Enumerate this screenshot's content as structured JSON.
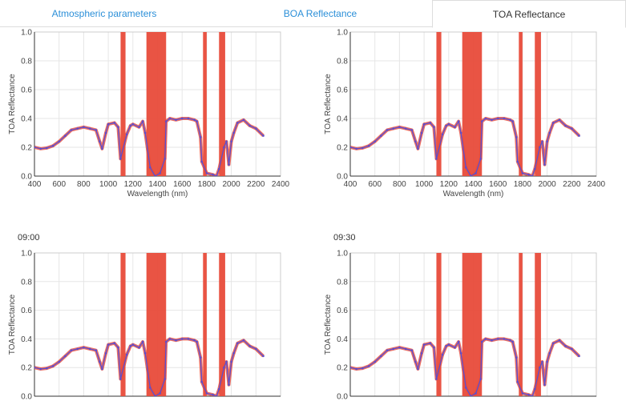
{
  "tabs": [
    {
      "label": "Atmospheric parameters",
      "active": false
    },
    {
      "label": "BOA Reflectance",
      "active": false
    },
    {
      "label": "TOA Reflectance",
      "active": true
    }
  ],
  "colors": {
    "line": "#5b4fd0",
    "band": "#e84b3a",
    "tab_link": "#2b8fd8",
    "ref_line": "#ef8a2a"
  },
  "chart_data": [
    {
      "type": "line",
      "title": "",
      "xlabel": "Wavelength (nm)",
      "ylabel": "TOA Reflectance",
      "xlim": [
        400,
        2400
      ],
      "ylim": [
        0.0,
        1.0
      ],
      "xticks": [
        400,
        600,
        800,
        1000,
        1200,
        1400,
        1600,
        1800,
        2000,
        2200,
        2400
      ],
      "yticks": [
        "0.0",
        "0.2",
        "0.4",
        "0.6",
        "0.8",
        "1.0"
      ],
      "xtick_labels": [
        "400",
        "600",
        "800",
        "1000",
        "1200",
        "1400",
        "1600",
        "1800",
        "2000",
        "2200",
        "2400"
      ],
      "absorption_bands": [
        [
          1100,
          1140
        ],
        [
          1310,
          1470
        ],
        [
          1770,
          1800
        ],
        [
          1900,
          1950
        ]
      ],
      "x": [
        400,
        450,
        500,
        550,
        600,
        650,
        700,
        750,
        800,
        850,
        900,
        930,
        950,
        980,
        1000,
        1050,
        1080,
        1100,
        1150,
        1180,
        1200,
        1250,
        1280,
        1300,
        1340,
        1380,
        1420,
        1460,
        1470,
        1500,
        1550,
        1600,
        1650,
        1700,
        1720,
        1750,
        1760,
        1800,
        1850,
        1880,
        1900,
        1940,
        1960,
        1980,
        2000,
        2020,
        2050,
        2100,
        2150,
        2200,
        2260
      ],
      "y": [
        0.2,
        0.19,
        0.195,
        0.21,
        0.24,
        0.28,
        0.32,
        0.33,
        0.34,
        0.33,
        0.32,
        0.24,
        0.19,
        0.3,
        0.36,
        0.37,
        0.34,
        0.12,
        0.29,
        0.35,
        0.36,
        0.34,
        0.38,
        0.3,
        0.06,
        0.0,
        0.02,
        0.12,
        0.38,
        0.4,
        0.39,
        0.4,
        0.4,
        0.39,
        0.38,
        0.27,
        0.1,
        0.02,
        0.01,
        0.0,
        0.05,
        0.2,
        0.24,
        0.08,
        0.24,
        0.3,
        0.37,
        0.39,
        0.35,
        0.33,
        0.28
      ],
      "visible_ymin": 0.0
    },
    {
      "type": "line",
      "title": "",
      "xlabel": "Wavelength (nm)",
      "ylabel": "TOA Reflectance",
      "xlim": [
        400,
        2400
      ],
      "ylim": [
        0.0,
        1.0
      ],
      "xticks": [
        400,
        600,
        800,
        1000,
        1200,
        1400,
        1600,
        1800,
        2000,
        2200,
        2400
      ],
      "yticks": [
        "0.0",
        "0.2",
        "0.4",
        "0.6",
        "0.8",
        "1.0"
      ],
      "xtick_labels": [
        "400",
        "600",
        "800",
        "1000",
        "1200",
        "1400",
        "1600",
        "1800",
        "2000",
        "2200",
        "2400"
      ],
      "absorption_bands": [
        [
          1100,
          1140
        ],
        [
          1310,
          1470
        ],
        [
          1770,
          1800
        ],
        [
          1900,
          1950
        ]
      ],
      "x": [
        400,
        450,
        500,
        550,
        600,
        650,
        700,
        750,
        800,
        850,
        900,
        930,
        950,
        980,
        1000,
        1050,
        1080,
        1100,
        1150,
        1180,
        1200,
        1250,
        1280,
        1300,
        1340,
        1380,
        1420,
        1460,
        1470,
        1500,
        1550,
        1600,
        1650,
        1700,
        1720,
        1750,
        1760,
        1800,
        1850,
        1880,
        1900,
        1940,
        1960,
        1980,
        2000,
        2020,
        2050,
        2100,
        2150,
        2200,
        2260
      ],
      "y": [
        0.2,
        0.19,
        0.195,
        0.21,
        0.24,
        0.28,
        0.32,
        0.33,
        0.34,
        0.33,
        0.32,
        0.24,
        0.19,
        0.3,
        0.36,
        0.37,
        0.34,
        0.12,
        0.29,
        0.35,
        0.36,
        0.34,
        0.38,
        0.3,
        0.06,
        0.0,
        0.02,
        0.12,
        0.38,
        0.4,
        0.39,
        0.4,
        0.4,
        0.39,
        0.38,
        0.27,
        0.1,
        0.02,
        0.01,
        0.0,
        0.05,
        0.2,
        0.24,
        0.08,
        0.24,
        0.3,
        0.37,
        0.39,
        0.35,
        0.33,
        0.28
      ],
      "visible_ymin": 0.0
    },
    {
      "type": "line",
      "title": "09:00",
      "xlabel": "",
      "ylabel": "TOA Reflectance",
      "xlim": [
        400,
        2400
      ],
      "ylim": [
        0.0,
        1.0
      ],
      "xticks": [
        400,
        600,
        800,
        1000,
        1200,
        1400,
        1600,
        1800,
        2000,
        2200,
        2400
      ],
      "yticks": [
        "0.0",
        "0.2",
        "0.4",
        "0.6",
        "0.8",
        "1.0"
      ],
      "xtick_labels": [],
      "absorption_bands": [
        [
          1100,
          1140
        ],
        [
          1310,
          1470
        ],
        [
          1770,
          1800
        ],
        [
          1900,
          1950
        ]
      ],
      "x": [
        400,
        450,
        500,
        550,
        600,
        650,
        700,
        750,
        800,
        850,
        900,
        930,
        950,
        980,
        1000,
        1050,
        1080,
        1100,
        1150,
        1180,
        1200,
        1250,
        1280,
        1300,
        1340,
        1380,
        1420,
        1460,
        1470,
        1500,
        1550,
        1600,
        1650,
        1700,
        1720,
        1750,
        1760,
        1800,
        1850,
        1880,
        1900,
        1940,
        1960,
        1980,
        2000,
        2020,
        2050,
        2100,
        2150,
        2200,
        2260
      ],
      "y": [
        0.2,
        0.19,
        0.195,
        0.21,
        0.24,
        0.28,
        0.32,
        0.33,
        0.34,
        0.33,
        0.32,
        0.24,
        0.19,
        0.3,
        0.36,
        0.37,
        0.34,
        0.12,
        0.29,
        0.35,
        0.36,
        0.34,
        0.38,
        0.3,
        0.06,
        0.0,
        0.02,
        0.12,
        0.38,
        0.4,
        0.39,
        0.4,
        0.4,
        0.39,
        0.38,
        0.27,
        0.1,
        0.02,
        0.01,
        0.0,
        0.05,
        0.2,
        0.24,
        0.08,
        0.24,
        0.3,
        0.37,
        0.39,
        0.35,
        0.33,
        0.28
      ],
      "visible_ymin": 0.0
    },
    {
      "type": "line",
      "title": "09:30",
      "xlabel": "",
      "ylabel": "TOA Reflectance",
      "xlim": [
        400,
        2400
      ],
      "ylim": [
        0.0,
        1.0
      ],
      "xticks": [
        400,
        600,
        800,
        1000,
        1200,
        1400,
        1600,
        1800,
        2000,
        2200,
        2400
      ],
      "yticks": [
        "0.0",
        "0.2",
        "0.4",
        "0.6",
        "0.8",
        "1.0"
      ],
      "xtick_labels": [],
      "absorption_bands": [
        [
          1100,
          1140
        ],
        [
          1310,
          1470
        ],
        [
          1770,
          1800
        ],
        [
          1900,
          1950
        ]
      ],
      "x": [
        400,
        450,
        500,
        550,
        600,
        650,
        700,
        750,
        800,
        850,
        900,
        930,
        950,
        980,
        1000,
        1050,
        1080,
        1100,
        1150,
        1180,
        1200,
        1250,
        1280,
        1300,
        1340,
        1380,
        1420,
        1460,
        1470,
        1500,
        1550,
        1600,
        1650,
        1700,
        1720,
        1750,
        1760,
        1800,
        1850,
        1880,
        1900,
        1940,
        1960,
        1980,
        2000,
        2020,
        2050,
        2100,
        2150,
        2200,
        2260
      ],
      "y": [
        0.2,
        0.19,
        0.195,
        0.21,
        0.24,
        0.28,
        0.32,
        0.33,
        0.34,
        0.33,
        0.32,
        0.24,
        0.19,
        0.3,
        0.36,
        0.37,
        0.34,
        0.12,
        0.29,
        0.35,
        0.36,
        0.34,
        0.38,
        0.3,
        0.06,
        0.0,
        0.02,
        0.12,
        0.38,
        0.4,
        0.39,
        0.4,
        0.4,
        0.39,
        0.38,
        0.27,
        0.1,
        0.02,
        0.01,
        0.0,
        0.05,
        0.2,
        0.24,
        0.08,
        0.24,
        0.3,
        0.37,
        0.39,
        0.35,
        0.33,
        0.28
      ],
      "visible_ymin": 0.0
    }
  ]
}
